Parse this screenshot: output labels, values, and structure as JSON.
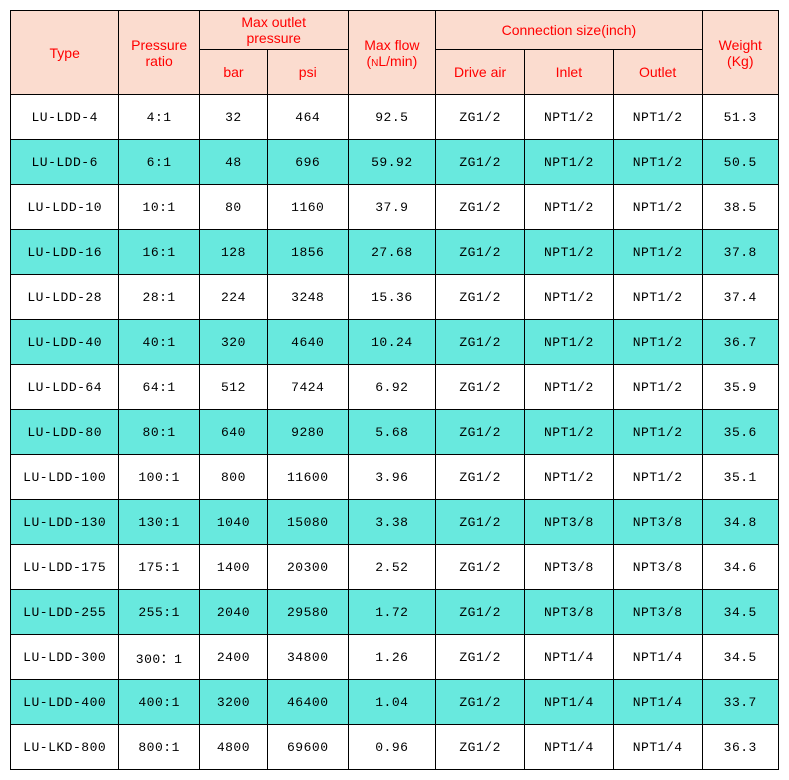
{
  "colors": {
    "header_bg": "#fbdccf",
    "header_text": "#ff0000",
    "row_even_bg": "#ffffff",
    "row_odd_bg": "#68e9de",
    "border": "#000000",
    "cell_text": "#000000"
  },
  "headers": {
    "type": "Type",
    "pressure_ratio_l1": "Pressure",
    "pressure_ratio_l2": "ratio",
    "max_outlet_l1": "Max outlet",
    "max_outlet_l2": "pressure",
    "bar": "bar",
    "psi": "psi",
    "max_flow_l1": "Max flow",
    "max_flow_l2_pre": "(",
    "max_flow_l2_n": "N",
    "max_flow_l2_post": "L/min)",
    "conn_size": "Connection size(inch)",
    "drive_air": "Drive air",
    "inlet": "Inlet",
    "outlet": "Outlet",
    "weight_l1": "Weight",
    "weight_l2": "(Kg)"
  },
  "rows": [
    {
      "type": "LU-LDD-4",
      "ratio": "4:1",
      "bar": "32",
      "psi": "464",
      "flow": "92.5",
      "drive": "ZG1/2",
      "inlet": "NPT1/2",
      "outlet": "NPT1/2",
      "weight": "51.3"
    },
    {
      "type": "LU-LDD-6",
      "ratio": "6:1",
      "bar": "48",
      "psi": "696",
      "flow": "59.92",
      "drive": "ZG1/2",
      "inlet": "NPT1/2",
      "outlet": "NPT1/2",
      "weight": "50.5"
    },
    {
      "type": "LU-LDD-10",
      "ratio": "10:1",
      "bar": "80",
      "psi": "1160",
      "flow": "37.9",
      "drive": "ZG1/2",
      "inlet": "NPT1/2",
      "outlet": "NPT1/2",
      "weight": "38.5"
    },
    {
      "type": "LU-LDD-16",
      "ratio": "16:1",
      "bar": "128",
      "psi": "1856",
      "flow": "27.68",
      "drive": "ZG1/2",
      "inlet": "NPT1/2",
      "outlet": "NPT1/2",
      "weight": "37.8"
    },
    {
      "type": "LU-LDD-28",
      "ratio": "28:1",
      "bar": "224",
      "psi": "3248",
      "flow": "15.36",
      "drive": "ZG1/2",
      "inlet": "NPT1/2",
      "outlet": "NPT1/2",
      "weight": "37.4"
    },
    {
      "type": "LU-LDD-40",
      "ratio": "40:1",
      "bar": "320",
      "psi": "4640",
      "flow": "10.24",
      "drive": "ZG1/2",
      "inlet": "NPT1/2",
      "outlet": "NPT1/2",
      "weight": "36.7"
    },
    {
      "type": "LU-LDD-64",
      "ratio": "64:1",
      "bar": "512",
      "psi": "7424",
      "flow": "6.92",
      "drive": "ZG1/2",
      "inlet": "NPT1/2",
      "outlet": "NPT1/2",
      "weight": "35.9"
    },
    {
      "type": "LU-LDD-80",
      "ratio": "80:1",
      "bar": "640",
      "psi": "9280",
      "flow": "5.68",
      "drive": "ZG1/2",
      "inlet": "NPT1/2",
      "outlet": "NPT1/2",
      "weight": "35.6"
    },
    {
      "type": "LU-LDD-100",
      "ratio": "100:1",
      "bar": "800",
      "psi": "11600",
      "flow": "3.96",
      "drive": "ZG1/2",
      "inlet": "NPT1/2",
      "outlet": "NPT1/2",
      "weight": "35.1"
    },
    {
      "type": "LU-LDD-130",
      "ratio": "130:1",
      "bar": "1040",
      "psi": "15080",
      "flow": "3.38",
      "drive": "ZG1/2",
      "inlet": "NPT3/8",
      "outlet": "NPT3/8",
      "weight": "34.8"
    },
    {
      "type": "LU-LDD-175",
      "ratio": "175:1",
      "bar": "1400",
      "psi": "20300",
      "flow": "2.52",
      "drive": "ZG1/2",
      "inlet": "NPT3/8",
      "outlet": "NPT3/8",
      "weight": "34.6"
    },
    {
      "type": "LU-LDD-255",
      "ratio": "255:1",
      "bar": "2040",
      "psi": "29580",
      "flow": "1.72",
      "drive": "ZG1/2",
      "inlet": "NPT3/8",
      "outlet": "NPT3/8",
      "weight": "34.5"
    },
    {
      "type": "LU-LDD-300",
      "ratio": "300：1",
      "bar": "2400",
      "psi": "34800",
      "flow": "1.26",
      "drive": "ZG1/2",
      "inlet": "NPT1/4",
      "outlet": "NPT1/4",
      "weight": "34.5"
    },
    {
      "type": "LU-LDD-400",
      "ratio": "400:1",
      "bar": "3200",
      "psi": "46400",
      "flow": "1.04",
      "drive": "ZG1/2",
      "inlet": "NPT1/4",
      "outlet": "NPT1/4",
      "weight": "33.7"
    },
    {
      "type": "LU-LKD-800",
      "ratio": "800:1",
      "bar": "4800",
      "psi": "69600",
      "flow": "0.96",
      "drive": "ZG1/2",
      "inlet": "NPT1/4",
      "outlet": "NPT1/4",
      "weight": "36.3"
    }
  ]
}
